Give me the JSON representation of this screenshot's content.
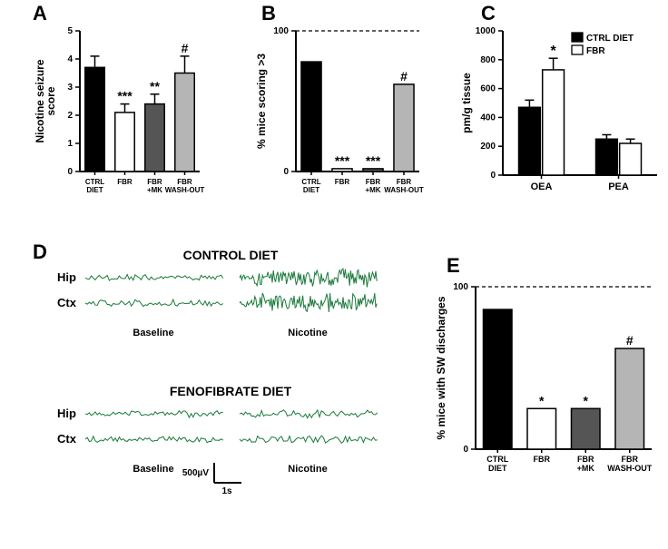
{
  "panelA": {
    "label": "A",
    "type": "bar",
    "ylabel": "Nicotine seizure\nscore",
    "ylim": [
      0,
      5
    ],
    "ytick_step": 1,
    "categories": [
      "CTRL\nDIET",
      "FBR",
      "FBR\n+MK",
      "FBR\nWASH-OUT"
    ],
    "values": [
      3.7,
      2.1,
      2.4,
      3.5
    ],
    "errs": [
      0.4,
      0.3,
      0.35,
      0.6
    ],
    "sigs": [
      "",
      "***",
      "**",
      "#"
    ],
    "colors": [
      "#000000",
      "#ffffff",
      "#555555",
      "#b5b5b5"
    ],
    "border": "#000000",
    "label_fontsize": 11
  },
  "panelB": {
    "label": "B",
    "type": "bar",
    "ylabel": "% mice scoring >3",
    "ylim": [
      0,
      100
    ],
    "ytick_step": 100,
    "refline": 100,
    "categories": [
      "CTRL\nDIET",
      "FBR",
      "FBR\n+MK",
      "FBR\nWASH-OUT"
    ],
    "values": [
      78,
      2,
      2,
      62
    ],
    "sigs": [
      "",
      "***",
      "***",
      "#"
    ],
    "colors": [
      "#000000",
      "#ffffff",
      "#555555",
      "#b5b5b5"
    ],
    "border": "#000000"
  },
  "panelC": {
    "label": "C",
    "type": "grouped-bar",
    "ylabel": "pm/g tissue",
    "ylim": [
      0,
      1000
    ],
    "ytick_step": 200,
    "groups": [
      "OEA",
      "PEA"
    ],
    "series": [
      {
        "name": "CTRL DIET",
        "color": "#000000",
        "values": [
          470,
          250
        ],
        "errs": [
          50,
          30
        ]
      },
      {
        "name": "FBR",
        "color": "#ffffff",
        "values": [
          730,
          220
        ],
        "errs": [
          80,
          30
        ]
      }
    ],
    "sigs": [
      [
        "",
        "*"
      ],
      [
        "",
        ""
      ]
    ],
    "legend": true
  },
  "panelD": {
    "label": "D",
    "titles": [
      "CONTROL DIET",
      "FENOFIBRATE DIET"
    ],
    "rows": [
      "Hip",
      "Ctx"
    ],
    "conditions": [
      "Baseline",
      "Nicotine"
    ],
    "scale_y": "500µV",
    "scale_x": "1s",
    "trace_color": "#1a7a3a"
  },
  "panelE": {
    "label": "E",
    "type": "bar",
    "ylabel": "% mice with SW discharges",
    "ylim": [
      0,
      100
    ],
    "ytick_step": 100,
    "refline": 100,
    "categories": [
      "CTRL\nDIET",
      "FBR",
      "FBR\n+MK",
      "FBR\nWASH-OUT"
    ],
    "values": [
      86,
      25,
      25,
      62
    ],
    "sigs": [
      "",
      "*",
      "*",
      "#"
    ],
    "colors": [
      "#000000",
      "#ffffff",
      "#555555",
      "#b5b5b5"
    ],
    "border": "#000000"
  }
}
